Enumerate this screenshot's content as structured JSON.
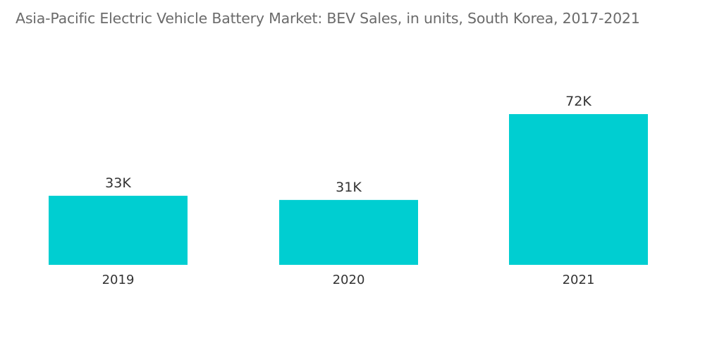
{
  "chart_data": {
    "type": "bar",
    "title": "Asia-Pacific Electric Vehicle Battery Market: BEV Sales, in units, South Korea, 2017-2021",
    "xlabel": "",
    "ylabel": "",
    "categories": [
      "2019",
      "2020",
      "2021"
    ],
    "values": [
      33,
      31,
      72
    ],
    "data_labels": [
      "33K",
      "31K",
      "72K"
    ],
    "ylim": [
      0,
      72
    ],
    "grid": false,
    "legend": "none",
    "bar_color": "#00ced1"
  }
}
